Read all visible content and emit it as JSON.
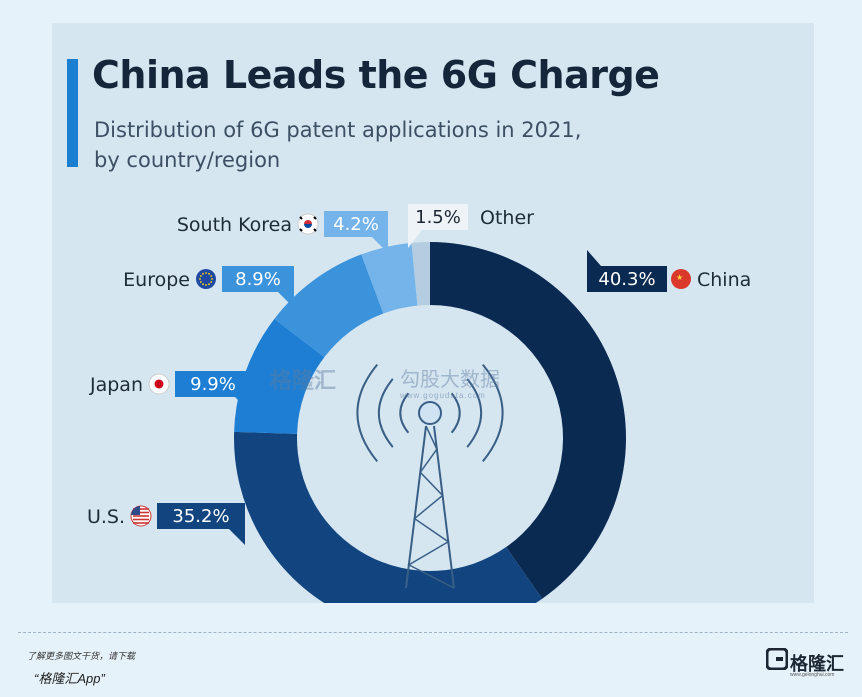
{
  "watermark": {
    "left": "格隆汇",
    "right": "勾股大数据",
    "url": "www.gogudata.com"
  },
  "chart_data": {
    "type": "pie",
    "title": "China Leads the 6G Charge",
    "subtitle_line1": "Distribution of 6G patent applications in 2021,",
    "subtitle_line2": "by country/region",
    "slices": [
      {
        "name": "China",
        "value": 40.3,
        "label": "40.3%",
        "color": "#0b2a52"
      },
      {
        "name": "U.S.",
        "value": 35.2,
        "label": "35.2%",
        "color": "#12457f"
      },
      {
        "name": "Japan",
        "value": 9.9,
        "label": "9.9%",
        "color": "#1d7ed3"
      },
      {
        "name": "Europe",
        "value": 8.9,
        "label": "8.9%",
        "color": "#3b93dc"
      },
      {
        "name": "South Korea",
        "value": 4.2,
        "label": "4.2%",
        "color": "#74b4eb"
      },
      {
        "name": "Other",
        "value": 1.5,
        "label": "1.5%",
        "color": "#b5cde0"
      }
    ]
  },
  "footer": {
    "promo_text": "了解更多图文干货，请下载",
    "promo_app": "“格隆汇App”",
    "logo_text": "格隆汇",
    "logo_url": "www.gelonghui.com"
  }
}
